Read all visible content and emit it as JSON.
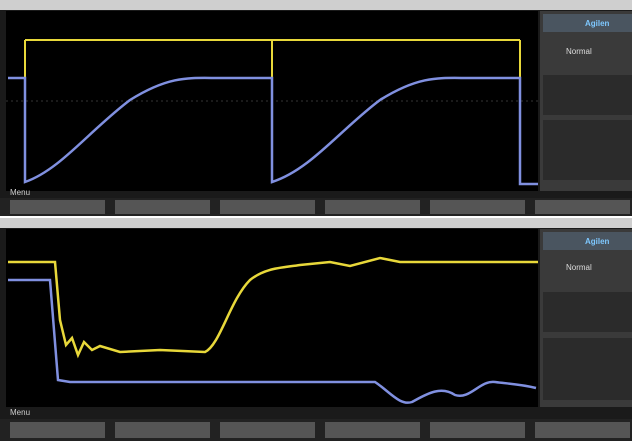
{
  "screens": [
    {
      "brand": "Agilen",
      "mode": "Normal",
      "menu": "Menu"
    },
    {
      "brand": "Agilen",
      "mode": "Normal",
      "menu": "Menu"
    }
  ]
}
